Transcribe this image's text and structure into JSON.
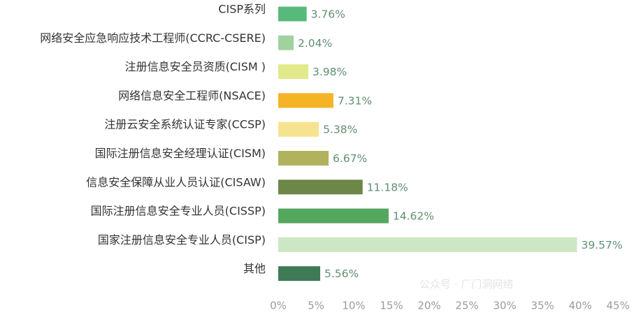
{
  "chart_data": {
    "type": "bar",
    "orientation": "horizontal",
    "categories": [
      "CISP系列",
      "网络安全应急响应技术工程师(CCRC-CSERE)",
      "注册信息安全员资质(CISM )",
      "网络信息安全工程师(NSACE)",
      "注册云安全系统认证专家(CCSP)",
      "国际注册信息安全经理认证(CISM)",
      "信息安全保障从业人员认证(CISAW)",
      "国际注册信息安全专业人员(CISSP)",
      "国家注册信息安全专业人员(CISP)",
      "其他"
    ],
    "values": [
      3.76,
      2.04,
      3.98,
      7.31,
      5.38,
      6.67,
      11.18,
      14.62,
      39.57,
      5.56
    ],
    "value_labels": [
      "3.76%",
      "2.04%",
      "3.98%",
      "7.31%",
      "5.38%",
      "6.67%",
      "11.18%",
      "14.62%",
      "39.57%",
      "5.56%"
    ],
    "bar_colors": [
      "#57b97a",
      "#9fd29f",
      "#e2e98a",
      "#f4b426",
      "#f5e38f",
      "#b1b25d",
      "#6c8746",
      "#53a75e",
      "#cde6c3",
      "#3f7a56"
    ],
    "xlim": [
      0,
      45
    ],
    "xticks": [
      "0%",
      "5%",
      "10%",
      "15%",
      "20%",
      "25%",
      "30%",
      "35%",
      "40%",
      "45%"
    ],
    "grid": false,
    "title": "",
    "xlabel": "",
    "ylabel": ""
  },
  "watermark": "公众号 · 厂门洞网络"
}
